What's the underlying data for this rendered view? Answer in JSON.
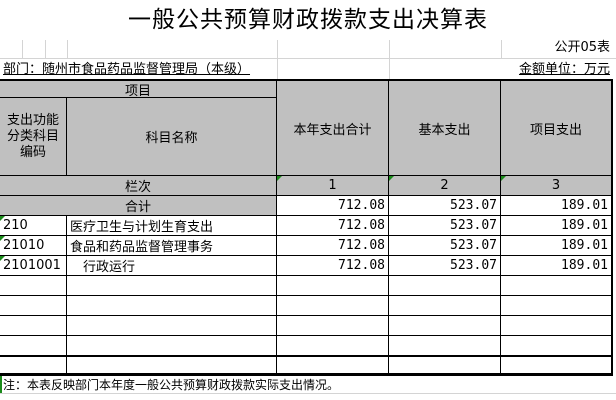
{
  "title": "一般公共预算财政拨款支出决算表",
  "form_no": "公开05表",
  "department": "部门：随州市食品药品监督管理局（本级）",
  "unit": "金额单位：万元",
  "header": {
    "item": "项目",
    "code": "支出功能分类科目编码",
    "name": "科目名称",
    "total": "本年支出合计",
    "basic": "基本支出",
    "project": "项目支出"
  },
  "column_index": {
    "label": "栏次",
    "c1": "1",
    "c2": "2",
    "c3": "3"
  },
  "total_row": {
    "label": "合计",
    "total": "712.08",
    "basic": "523.07",
    "project": "189.01"
  },
  "rows": [
    {
      "code": "210",
      "name": "医疗卫生与计划生育支出",
      "total": "712.08",
      "basic": "523.07",
      "project": "189.01"
    },
    {
      "code": "21010",
      "name": "食品和药品监督管理事务",
      "total": "712.08",
      "basic": "523.07",
      "project": "189.01"
    },
    {
      "code": "2101001",
      "name": "　行政运行",
      "total": "712.08",
      "basic": "523.07",
      "project": "189.01"
    }
  ],
  "note": "注：本表反映部门本年度一般公共预算财政拨款实际支出情况。"
}
